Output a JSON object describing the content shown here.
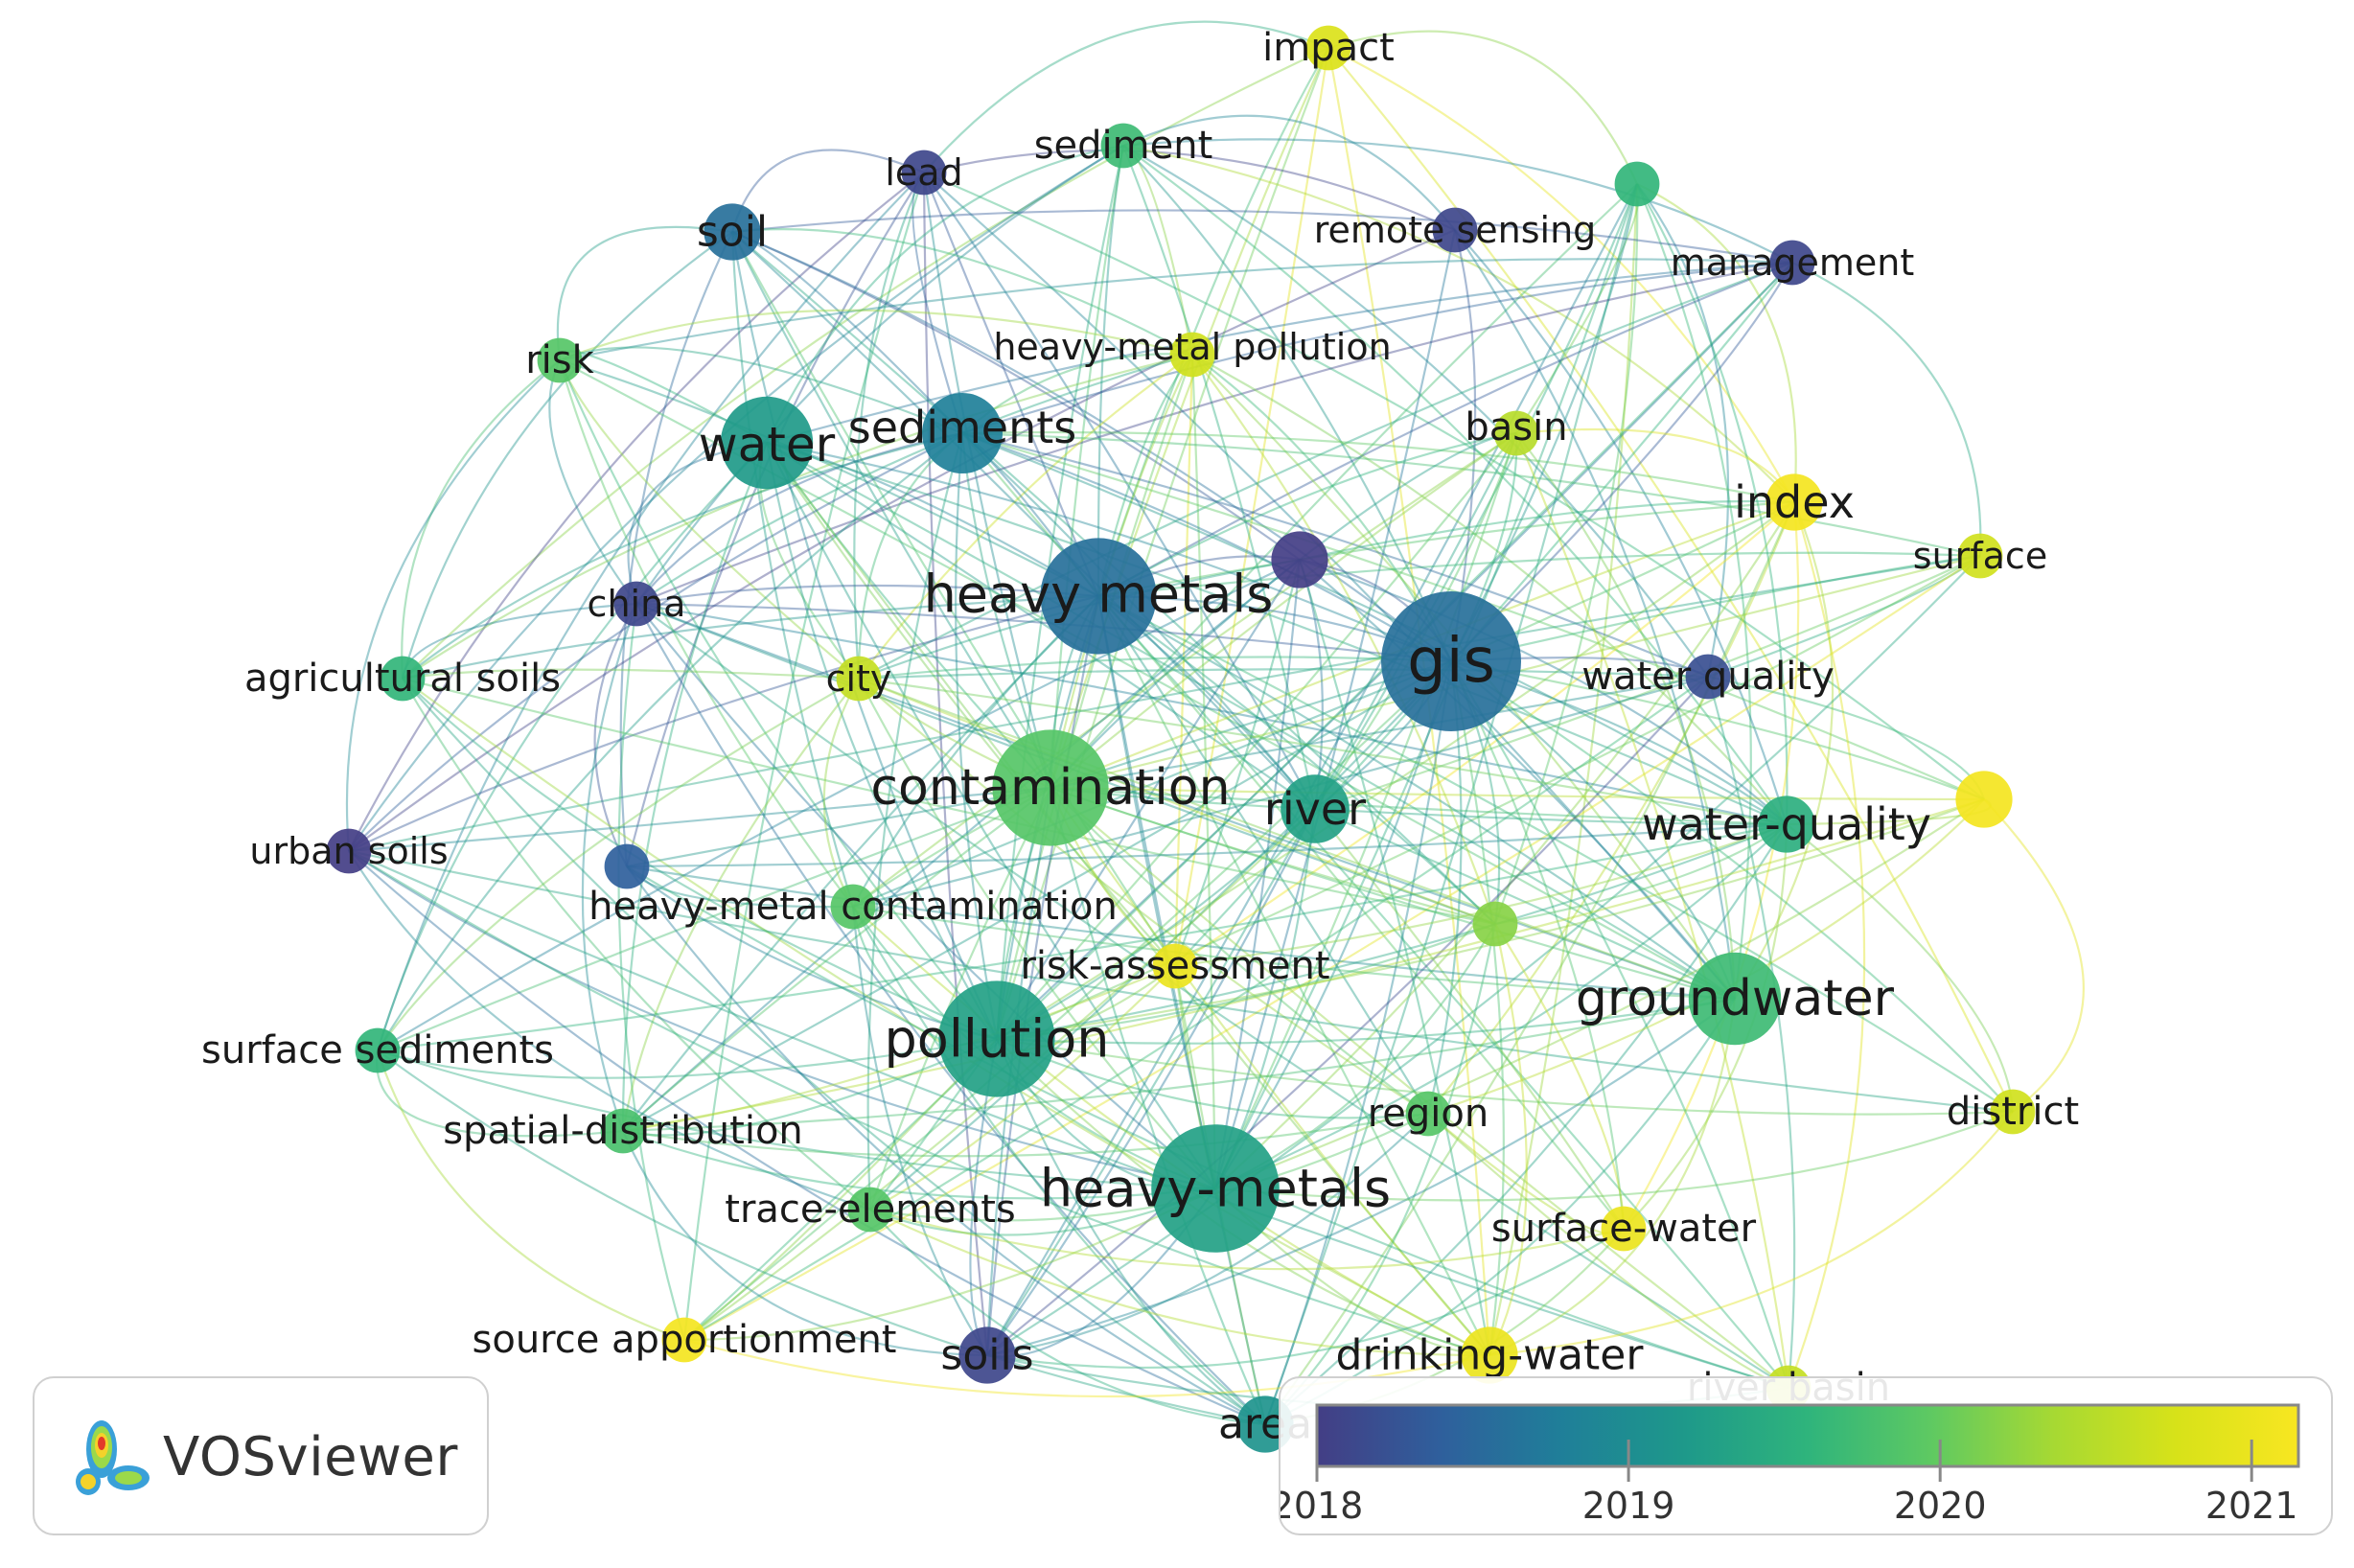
{
  "chart_data": {
    "type": "network",
    "nodes": [
      {
        "id": "impact",
        "label": "impact",
        "year": 2020.8,
        "weight": 2
      },
      {
        "id": "lead",
        "label": "lead",
        "year": 2018.1,
        "weight": 2
      },
      {
        "id": "sediment",
        "label": "sediment",
        "year": 2019.7,
        "weight": 2
      },
      {
        "id": "n-unlabeled-1",
        "label": "",
        "year": 2019.6,
        "weight": 2
      },
      {
        "id": "soil",
        "label": "soil",
        "year": 2018.6,
        "weight": 3
      },
      {
        "id": "remote-sensing",
        "label": "remote sensing",
        "year": 2018.1,
        "weight": 2
      },
      {
        "id": "management",
        "label": "management",
        "year": 2018.1,
        "weight": 2
      },
      {
        "id": "risk",
        "label": "risk",
        "year": 2019.9,
        "weight": 2
      },
      {
        "id": "heavy-metal-pollution",
        "label": "heavy-metal pollution",
        "year": 2020.7,
        "weight": 2
      },
      {
        "id": "water",
        "label": "water",
        "year": 2019.2,
        "weight": 6
      },
      {
        "id": "sediments",
        "label": "sediments",
        "year": 2018.8,
        "weight": 5
      },
      {
        "id": "basin",
        "label": "basin",
        "year": 2020.5,
        "weight": 2
      },
      {
        "id": "index",
        "label": "index",
        "year": 2021.1,
        "weight": 3
      },
      {
        "id": "surface",
        "label": "surface",
        "year": 2020.7,
        "weight": 2
      },
      {
        "id": "n-unlabeled-2",
        "label": "",
        "year": 2018.0,
        "weight": 3
      },
      {
        "id": "heavy-metals",
        "label": "heavy metals",
        "year": 2018.6,
        "weight": 8
      },
      {
        "id": "china",
        "label": "china",
        "year": 2018.1,
        "weight": 2
      },
      {
        "id": "gis",
        "label": "gis",
        "year": 2018.6,
        "weight": 10
      },
      {
        "id": "water-quality-2",
        "label": "water quality",
        "year": 2018.2,
        "weight": 2
      },
      {
        "id": "agricultural-soils",
        "label": "agricultural soils",
        "year": 2019.6,
        "weight": 2
      },
      {
        "id": "city",
        "label": "city",
        "year": 2020.6,
        "weight": 2
      },
      {
        "id": "contamination",
        "label": "contamination",
        "year": 2019.9,
        "weight": 8
      },
      {
        "id": "river",
        "label": "river",
        "year": 2019.3,
        "weight": 4
      },
      {
        "id": "water-quality",
        "label": "water-quality",
        "year": 2019.5,
        "weight": 3
      },
      {
        "id": "n-unlabeled-3",
        "label": "",
        "year": 2021.1,
        "weight": 3
      },
      {
        "id": "urban-soils",
        "label": "urban soils",
        "year": 2018.0,
        "weight": 2
      },
      {
        "id": "n-unlabeled-4",
        "label": "",
        "year": 2018.4,
        "weight": 2
      },
      {
        "id": "heavy-metal-contamination",
        "label": "heavy-metal contamination",
        "year": 2019.9,
        "weight": 2
      },
      {
        "id": "n-unlabeled-5",
        "label": "",
        "year": 2020.2,
        "weight": 2
      },
      {
        "id": "risk-assessment",
        "label": "risk-assessment",
        "year": 2021.0,
        "weight": 2
      },
      {
        "id": "groundwater",
        "label": "groundwater",
        "year": 2019.7,
        "weight": 6
      },
      {
        "id": "pollution",
        "label": "pollution",
        "year": 2019.3,
        "weight": 8
      },
      {
        "id": "surface-sediments",
        "label": "surface sediments",
        "year": 2019.6,
        "weight": 2
      },
      {
        "id": "spatial-distribution",
        "label": "spatial-distribution",
        "year": 2019.8,
        "weight": 2
      },
      {
        "id": "region",
        "label": "region",
        "year": 2019.9,
        "weight": 2
      },
      {
        "id": "district",
        "label": "district",
        "year": 2020.7,
        "weight": 2
      },
      {
        "id": "heavy-metals-2",
        "label": "heavy-metals",
        "year": 2019.3,
        "weight": 9
      },
      {
        "id": "trace-elements",
        "label": "trace-elements",
        "year": 2019.9,
        "weight": 2
      },
      {
        "id": "surface-water",
        "label": "surface-water",
        "year": 2021.0,
        "weight": 2
      },
      {
        "id": "source-apportionment",
        "label": "source apportionment",
        "year": 2021.1,
        "weight": 2
      },
      {
        "id": "soils",
        "label": "soils",
        "year": 2018.1,
        "weight": 3
      },
      {
        "id": "drinking-water",
        "label": "drinking-water",
        "year": 2021.0,
        "weight": 3
      },
      {
        "id": "area",
        "label": "area",
        "year": 2019.1,
        "weight": 3
      },
      {
        "id": "river-basin",
        "label": "river basin",
        "year": 2020.6,
        "weight": 2
      }
    ],
    "color_scale": {
      "min": 2018,
      "max": 2021.15,
      "ticks": [
        "2018",
        "2019",
        "2020",
        "2021"
      ],
      "tick_values": [
        2018,
        2019,
        2020,
        2021
      ],
      "colors": [
        "#433e85",
        "#2f5f9c",
        "#1f7f99",
        "#1e998a",
        "#2fb47c",
        "#5ec962",
        "#a6d933",
        "#d7e219",
        "#f8e621"
      ]
    }
  },
  "logo": {
    "text": "VOSviewer"
  }
}
